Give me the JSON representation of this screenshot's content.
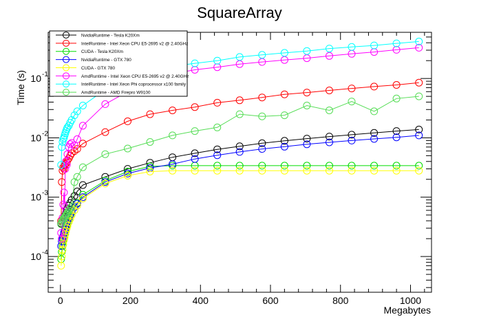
{
  "chart_data": {
    "type": "line",
    "title": "SquareArray",
    "xlabel": "Megabytes",
    "ylabel": "Time (s)",
    "xlim": [
      -35,
      1060
    ],
    "ylim": [
      2.5e-05,
      0.6
    ],
    "y_scale": "log",
    "grid": false,
    "legend_position": "top-left",
    "x_ticks": [
      0,
      200,
      400,
      600,
      800,
      1000
    ],
    "y_ticks": [
      {
        "value": 0.0001,
        "base": "10",
        "exp": "-4"
      },
      {
        "value": 0.001,
        "base": "10",
        "exp": "-3"
      },
      {
        "value": 0.01,
        "base": "10",
        "exp": "-2"
      },
      {
        "value": 0.1,
        "base": "10",
        "exp": "-1"
      }
    ],
    "series": [
      {
        "name": "NvidiaRuntime - Tesla K20Xm",
        "color": "#000000",
        "x": [
          2,
          4,
          6,
          8,
          10,
          12,
          14,
          16,
          18,
          20,
          24,
          28,
          32,
          40,
          48,
          64,
          128,
          192,
          256,
          320,
          384,
          448,
          512,
          576,
          640,
          704,
          768,
          832,
          896,
          960,
          1024
        ],
        "y": [
          0.00036,
          0.00038,
          0.0004,
          0.00042,
          0.00045,
          0.00048,
          0.0005,
          0.00055,
          0.0006,
          0.00064,
          0.00072,
          0.0008,
          0.0009,
          0.00105,
          0.00125,
          0.0016,
          0.0022,
          0.003,
          0.0038,
          0.0047,
          0.0055,
          0.0064,
          0.0072,
          0.0081,
          0.0089,
          0.0097,
          0.0105,
          0.0113,
          0.0121,
          0.013,
          0.0138
        ]
      },
      {
        "name": "IntelRuntime - Intel Xeon CPU E5-2695 v2 @ 2.40GHz",
        "color": "#ff0000",
        "x": [
          2,
          4,
          6,
          8,
          10,
          12,
          14,
          16,
          18,
          20,
          24,
          28,
          32,
          40,
          48,
          64,
          128,
          192,
          256,
          320,
          384,
          448,
          512,
          576,
          640,
          704,
          768,
          832,
          896,
          960,
          1024
        ],
        "y": [
          0.0004,
          0.0018,
          0.0028,
          0.0032,
          0.003,
          0.0034,
          0.0036,
          0.004,
          0.0038,
          0.0042,
          0.0045,
          0.005,
          0.0055,
          0.006,
          0.0065,
          0.008,
          0.0125,
          0.019,
          0.025,
          0.029,
          0.033,
          0.039,
          0.043,
          0.048,
          0.054,
          0.058,
          0.063,
          0.068,
          0.073,
          0.078,
          0.085
        ]
      },
      {
        "name": "CUDA - Tesla K20Xm",
        "color": "#00dd00",
        "x": [
          2,
          4,
          6,
          8,
          10,
          12,
          14,
          16,
          18,
          20,
          24,
          28,
          32,
          40,
          48,
          64,
          128,
          192,
          256,
          320,
          384,
          448,
          512,
          576,
          640,
          704,
          768,
          832,
          896,
          960,
          1024
        ],
        "y": [
          9e-05,
          0.00012,
          0.00015,
          0.00018,
          0.0002,
          0.00023,
          0.00026,
          0.0003,
          0.00033,
          0.00037,
          0.00042,
          0.00048,
          0.00055,
          0.00068,
          0.0008,
          0.0011,
          0.0019,
          0.0027,
          0.0033,
          0.0034,
          0.0034,
          0.0034,
          0.0034,
          0.0034,
          0.0034,
          0.0034,
          0.0034,
          0.0034,
          0.0034,
          0.0034,
          0.0034
        ]
      },
      {
        "name": "NvidiaRuntime - GTX 780",
        "color": "#0000ff",
        "x": [
          2,
          4,
          6,
          8,
          10,
          12,
          14,
          16,
          18,
          20,
          24,
          28,
          32,
          40,
          48,
          64,
          128,
          192,
          256,
          320,
          384,
          448,
          512,
          576,
          640,
          704,
          768,
          832,
          896,
          960,
          1024
        ],
        "y": [
          0.00015,
          0.00018,
          0.0002,
          0.00022,
          0.00025,
          0.00027,
          0.0003,
          0.00033,
          0.00036,
          0.0004,
          0.00045,
          0.0005,
          0.00058,
          0.00068,
          0.00078,
          0.001,
          0.0018,
          0.0025,
          0.0031,
          0.0036,
          0.0044,
          0.0051,
          0.0058,
          0.0065,
          0.0071,
          0.0078,
          0.0084,
          0.009,
          0.0096,
          0.0102,
          0.011
        ]
      },
      {
        "name": "CUDA - GTX 780",
        "color": "#ffff00",
        "x": [
          2,
          4,
          6,
          8,
          10,
          12,
          14,
          16,
          18,
          20,
          24,
          28,
          32,
          40,
          48,
          64,
          128,
          192,
          256,
          320,
          384,
          448,
          512,
          576,
          640,
          704,
          768,
          832,
          896,
          960,
          1024
        ],
        "y": [
          7e-05,
          0.0001,
          0.00013,
          0.00016,
          0.00019,
          0.00021,
          0.00024,
          0.00027,
          0.0003,
          0.00033,
          0.00038,
          0.00043,
          0.0005,
          0.0006,
          0.00072,
          0.00095,
          0.0017,
          0.0023,
          0.0027,
          0.0028,
          0.0028,
          0.0028,
          0.0028,
          0.0028,
          0.0028,
          0.0028,
          0.0028,
          0.0028,
          0.0028,
          0.0028,
          0.0028
        ]
      },
      {
        "name": "AmdRuntime - Intel Xeon CPU E5-2695 v2 @ 2.40GHz",
        "color": "#ff00ff",
        "x": [
          2,
          4,
          6,
          8,
          10,
          12,
          14,
          16,
          18,
          20,
          24,
          28,
          32,
          40,
          48,
          64,
          128,
          192,
          256,
          320,
          384,
          448,
          512,
          576,
          640,
          704,
          768,
          832,
          896,
          960,
          1024
        ],
        "y": [
          0.00025,
          0.0002,
          0.00045,
          0.00075,
          0.0012,
          0.0007,
          0.003,
          0.004,
          0.0035,
          0.0053,
          0.007,
          0.0078,
          0.0082,
          0.0075,
          0.0095,
          0.016,
          0.037,
          0.06,
          0.09,
          0.12,
          0.14,
          0.155,
          0.175,
          0.19,
          0.205,
          0.22,
          0.24,
          0.26,
          0.28,
          0.305,
          0.33
        ]
      },
      {
        "name": "IntelRuntime - Intel Xeon Phi coprocessor x100 family",
        "color": "#00ffff",
        "x": [
          2,
          4,
          6,
          8,
          10,
          12,
          14,
          16,
          18,
          20,
          24,
          28,
          32,
          40,
          48,
          64,
          128,
          192,
          256,
          320,
          384,
          448,
          512,
          576,
          640,
          704,
          768,
          832,
          896,
          960,
          1024
        ],
        "y": [
          0.0035,
          0.007,
          0.0085,
          0.0095,
          0.01,
          0.011,
          0.012,
          0.013,
          0.014,
          0.015,
          0.016,
          0.018,
          0.02,
          0.024,
          0.028,
          0.035,
          0.065,
          0.105,
          0.14,
          0.16,
          0.18,
          0.2,
          0.23,
          0.25,
          0.27,
          0.29,
          0.32,
          0.34,
          0.36,
          0.39,
          0.42
        ]
      },
      {
        "name": "AmdRuntime - AMD Firepro W9100",
        "color": "#55dd55",
        "x": [
          2,
          4,
          6,
          8,
          10,
          12,
          14,
          16,
          18,
          20,
          24,
          28,
          32,
          40,
          48,
          64,
          128,
          192,
          256,
          320,
          384,
          448,
          512,
          576,
          640,
          704,
          768,
          832,
          896,
          960,
          1024
        ],
        "y": [
          0.00035,
          0.00038,
          0.0004,
          0.00042,
          0.00044,
          0.00046,
          0.00048,
          0.0005,
          0.00052,
          0.00055,
          0.0006,
          0.00065,
          0.0007,
          0.0018,
          0.0022,
          0.0032,
          0.0053,
          0.0066,
          0.0085,
          0.011,
          0.013,
          0.015,
          0.025,
          0.023,
          0.024,
          0.035,
          0.029,
          0.041,
          0.028,
          0.046,
          0.05
        ]
      }
    ]
  }
}
